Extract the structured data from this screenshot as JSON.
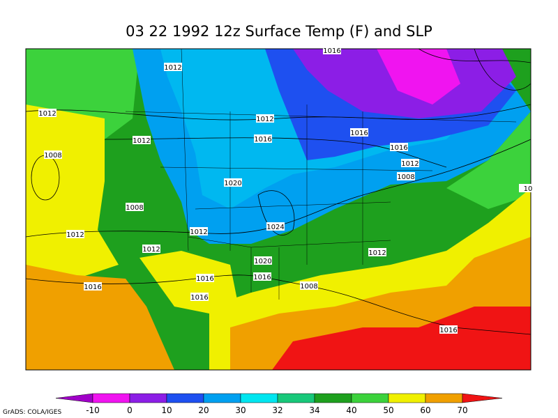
{
  "title": "03 22 1992 12z Surface Temp (F) and SLP",
  "credit": "GrADS: COLA/IGES",
  "isobar_labels": [
    1016,
    1012,
    1012,
    1012,
    1016,
    1012,
    1016,
    1016,
    1012,
    1008,
    1008,
    1020,
    10,
    1008,
    1012,
    1012,
    1024,
    1012,
    1012,
    1020,
    1016,
    1016,
    1016,
    1008,
    1016,
    1016
  ],
  "colorbar": {
    "levels": [
      -10,
      0,
      10,
      20,
      30,
      32,
      34,
      40,
      50,
      60,
      70
    ],
    "colors": [
      "#a000c8",
      "#f014f0",
      "#8c1ee6",
      "#1e50f0",
      "#00a0f0",
      "#00e6f0",
      "#18c87a",
      "#1ea01e",
      "#3cd23c",
      "#f0f000",
      "#f0a000",
      "#f01414"
    ]
  }
}
